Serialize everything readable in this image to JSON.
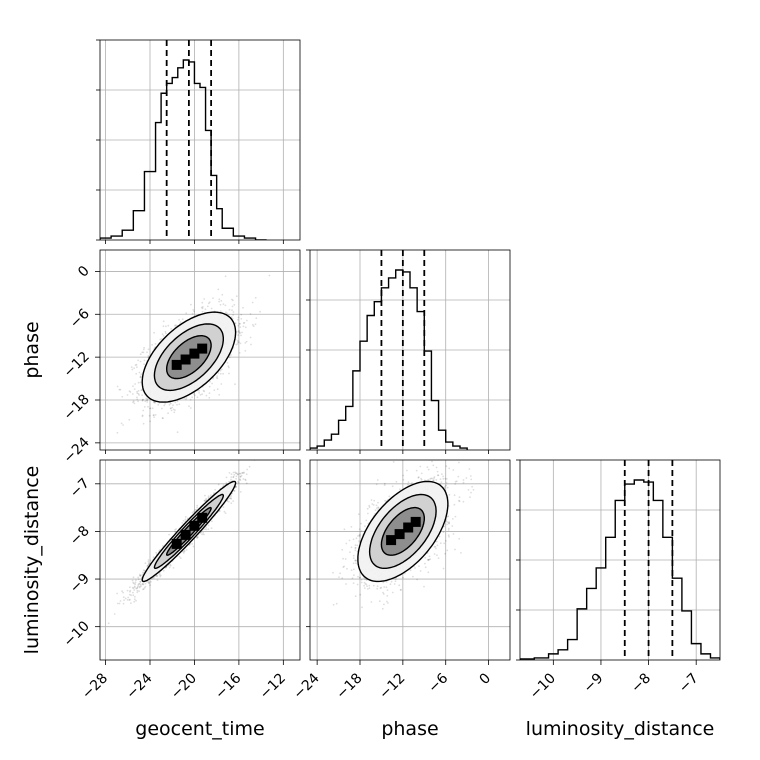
{
  "chart_data": {
    "type": "corner",
    "parameters": [
      "geocent_time",
      "phase",
      "luminosity_distance"
    ],
    "ranges": {
      "geocent_time": [
        -28.5,
        -10.5
      ],
      "phase": [
        -25,
        3
      ],
      "luminosity_distance": [
        -10.7,
        -6.5
      ]
    },
    "ticks": {
      "geocent_time": [
        -28,
        -24,
        -20,
        -16,
        -12
      ],
      "phase": [
        -24,
        -18,
        -12,
        -6,
        0
      ],
      "luminosity_distance": [
        -10,
        -9,
        -8,
        -7
      ]
    },
    "tick_labels": {
      "geocent_time": [
        "−28",
        "−24",
        "−20",
        "−16",
        "−12"
      ],
      "phase": [
        "−24",
        "−18",
        "−12",
        "−6",
        "0"
      ],
      "luminosity_distance": [
        "−10",
        "−9",
        "−8",
        "−7"
      ]
    },
    "quantiles": {
      "geocent_time": [
        -22.5,
        -20.5,
        -18.5
      ],
      "phase": [
        -15.0,
        -12.0,
        -9.0
      ],
      "luminosity_distance": [
        -8.5,
        -8.0,
        -7.5
      ]
    },
    "marginals": {
      "geocent_time": {
        "edges": [
          -28.5,
          -27.5,
          -26.5,
          -25.5,
          -24.5,
          -23.5,
          -23.0,
          -22.5,
          -22.0,
          -21.5,
          -21.0,
          -20.5,
          -20.0,
          -19.5,
          -19.0,
          -18.5,
          -18.0,
          -17.5,
          -16.5,
          -15.5,
          -14.5,
          -13.5
        ],
        "counts": [
          1,
          2,
          5,
          15,
          35,
          60,
          75,
          80,
          83,
          88,
          92,
          91,
          80,
          78,
          56,
          33,
          16,
          6,
          2,
          1,
          0
        ]
      },
      "phase": {
        "edges": [
          -25,
          -24,
          -23,
          -22,
          -21,
          -20,
          -19,
          -18,
          -17,
          -16,
          -15,
          -14,
          -13,
          -12,
          -11,
          -10,
          -9,
          -8,
          -7,
          -6,
          -5,
          -4,
          -3
        ],
        "counts": [
          1,
          2,
          5,
          8,
          15,
          22,
          40,
          55,
          68,
          75,
          82,
          87,
          91,
          90,
          82,
          70,
          50,
          25,
          10,
          4,
          2,
          1
        ]
      },
      "luminosity_distance": {
        "edges": [
          -10.7,
          -10.4,
          -10.1,
          -9.9,
          -9.7,
          -9.5,
          -9.3,
          -9.1,
          -8.9,
          -8.7,
          -8.5,
          -8.3,
          -8.1,
          -7.9,
          -7.7,
          -7.5,
          -7.3,
          -7.1,
          -6.9,
          -6.7,
          -6.5
        ],
        "counts": [
          0.5,
          1,
          3,
          5,
          10,
          25,
          35,
          45,
          60,
          78,
          86,
          88,
          87,
          78,
          60,
          40,
          24,
          8,
          3,
          1
        ]
      }
    },
    "joint": {
      "phase_vs_geocent_time": {
        "mean": [
          -20.5,
          -12.0
        ],
        "sd": [
          2.0,
          3.0
        ],
        "rho": 0.55
      },
      "luminosity_distance_vs_geocent_time": {
        "mean": [
          -20.5,
          -8.0
        ],
        "sd": [
          2.0,
          0.5
        ],
        "rho": 0.97
      },
      "luminosity_distance_vs_phase": {
        "mean": [
          -12.0,
          -8.0
        ],
        "sd": [
          3.0,
          0.5
        ],
        "rho": 0.55
      }
    },
    "grid": true,
    "legend": "none"
  }
}
